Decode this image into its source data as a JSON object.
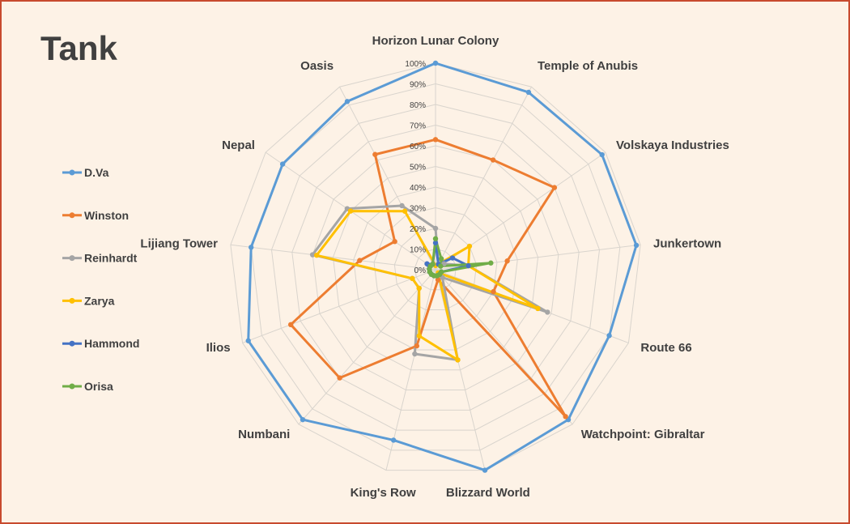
{
  "title": "Tank",
  "chart_data": {
    "type": "radar",
    "title": "Tank",
    "categories": [
      "Horizon Lunar Colony",
      "Temple of Anubis",
      "Volskaya Industries",
      "Junkertown",
      "Route 66",
      "Watchpoint: Gibraltar",
      "Blizzard World",
      "King's Row",
      "Numbani",
      "Ilios",
      "Lijiang Tower",
      "Nepal",
      "Oasis"
    ],
    "ticks": [
      "0%",
      "10%",
      "20%",
      "30%",
      "40%",
      "50%",
      "60%",
      "70%",
      "80%",
      "90%",
      "100%"
    ],
    "rlim": [
      0,
      100
    ],
    "legend_position": "left",
    "series": [
      {
        "name": "D.Va",
        "color": "#5b9bd5",
        "values": [
          100,
          97,
          98,
          98,
          90,
          97,
          100,
          85,
          97,
          97,
          90,
          90,
          92
        ]
      },
      {
        "name": "Winston",
        "color": "#ed7d31",
        "values": [
          63,
          60,
          70,
          35,
          30,
          95,
          5,
          38,
          70,
          75,
          37,
          24,
          63
        ]
      },
      {
        "name": "Reinhardt",
        "color": "#a5a5a5",
        "values": [
          20,
          3,
          5,
          16,
          58,
          5,
          45,
          42,
          12,
          12,
          60,
          52,
          35
        ]
      },
      {
        "name": "Zarya",
        "color": "#ffc000",
        "values": [
          2,
          3,
          20,
          16,
          53,
          2,
          45,
          33,
          12,
          12,
          58,
          50,
          32
        ]
      },
      {
        "name": "Hammond",
        "color": "#4472c4",
        "values": [
          13,
          3,
          10,
          16,
          3,
          3,
          3,
          3,
          3,
          3,
          3,
          5,
          3
        ]
      },
      {
        "name": "Orisa",
        "color": "#70ad47",
        "values": [
          15,
          6,
          3,
          27,
          3,
          3,
          3,
          3,
          3,
          3,
          3,
          3,
          3
        ]
      }
    ]
  }
}
